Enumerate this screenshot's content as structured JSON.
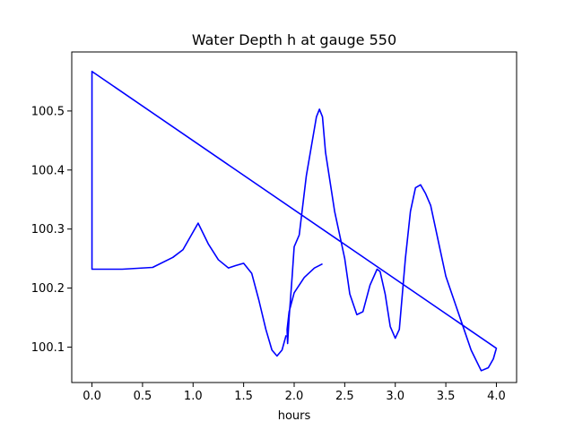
{
  "chart_data": {
    "type": "line",
    "title": "Water Depth h at gauge 550",
    "xlabel": "hours",
    "ylabel": "",
    "xlim": [
      -0.2,
      4.2
    ],
    "ylim": [
      100.04,
      100.6
    ],
    "xticks": [
      0.0,
      0.5,
      1.0,
      1.5,
      2.0,
      2.5,
      3.0,
      3.5,
      4.0
    ],
    "xtick_labels": [
      "0.0",
      "0.5",
      "1.0",
      "1.5",
      "2.0",
      "2.5",
      "3.0",
      "3.5",
      "4.0"
    ],
    "yticks": [
      100.1,
      100.2,
      100.3,
      100.4,
      100.5
    ],
    "ytick_labels": [
      "100.1",
      "100.2",
      "100.3",
      "100.4",
      "100.5"
    ],
    "grid": false,
    "series": [
      {
        "color": "#0000ff",
        "x": [
          2.28,
          2.2,
          2.1,
          2.0,
          1.95,
          1.93,
          1.935,
          1.95,
          1.98,
          2.0,
          2.05,
          2.12,
          2.2,
          2.22,
          2.25,
          2.28,
          2.31,
          2.4,
          2.5,
          2.55,
          2.62,
          2.68,
          2.75,
          2.82,
          2.85,
          2.9,
          2.95,
          3.0,
          3.04,
          3.1,
          3.15,
          3.2,
          3.25,
          3.3,
          3.35,
          3.4,
          3.45,
          3.5,
          3.56,
          3.65,
          3.75,
          3.85,
          3.92,
          3.97,
          4.0,
          0.0,
          0.0,
          0.3,
          0.6,
          0.8,
          0.9,
          0.95,
          1.05,
          1.15,
          1.25,
          1.35,
          1.42,
          1.5,
          1.58,
          1.65,
          1.72,
          1.78,
          1.83,
          1.88,
          1.92
        ],
        "y": [
          100.241,
          100.234,
          100.218,
          100.192,
          100.16,
          100.13,
          100.106,
          100.15,
          100.22,
          100.27,
          100.29,
          100.39,
          100.47,
          100.49,
          100.503,
          100.49,
          100.43,
          100.33,
          100.25,
          100.19,
          100.155,
          100.16,
          100.205,
          100.232,
          100.228,
          100.19,
          100.135,
          100.115,
          100.13,
          100.25,
          100.33,
          100.37,
          100.375,
          100.36,
          100.34,
          100.3,
          100.26,
          100.22,
          100.19,
          100.145,
          100.095,
          100.06,
          100.065,
          100.08,
          100.098,
          100.567,
          100.232,
          100.232,
          100.235,
          100.252,
          100.265,
          100.28,
          100.31,
          100.275,
          100.248,
          100.234,
          100.238,
          100.242,
          100.225,
          100.18,
          100.13,
          100.095,
          100.085,
          100.095,
          100.12
        ]
      }
    ]
  }
}
